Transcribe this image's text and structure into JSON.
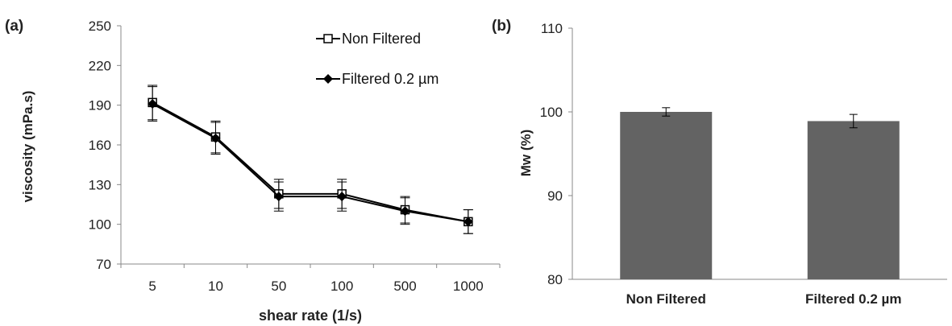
{
  "chart_data": [
    {
      "panel_label": "(a)",
      "type": "line",
      "categories": [
        "5",
        "10",
        "50",
        "100",
        "500",
        "1000"
      ],
      "xlabel": "shear rate (1/s)",
      "ylabel": "viscosity (mPa.s)",
      "ylim": [
        70,
        250
      ],
      "yticks": [
        "70",
        "100",
        "130",
        "160",
        "190",
        "220",
        "250"
      ],
      "grid": false,
      "legend": "top-right",
      "series": [
        {
          "name": "Non Filtered",
          "marker": "open-square",
          "color": "#000000",
          "values": [
            192,
            166,
            123,
            123,
            111,
            102
          ],
          "errors": [
            13,
            12,
            11,
            11,
            10,
            9
          ]
        },
        {
          "name": "Filtered 0.2 µm",
          "marker": "filled-diamond",
          "color": "#000000",
          "values": [
            191,
            165,
            121,
            121,
            110,
            102
          ],
          "errors": [
            13,
            12,
            11,
            11,
            10,
            9
          ]
        }
      ]
    },
    {
      "panel_label": "(b)",
      "type": "bar",
      "categories": [
        "Non Filtered",
        "Filtered 0.2 µm"
      ],
      "values": [
        100,
        98.9
      ],
      "errors": [
        0.5,
        0.8
      ],
      "ylabel": "Mw (%)",
      "ylim": [
        80,
        110
      ],
      "yticks": [
        "80",
        "90",
        "100",
        "110"
      ],
      "bar_color": "#636363",
      "grid": false
    }
  ]
}
